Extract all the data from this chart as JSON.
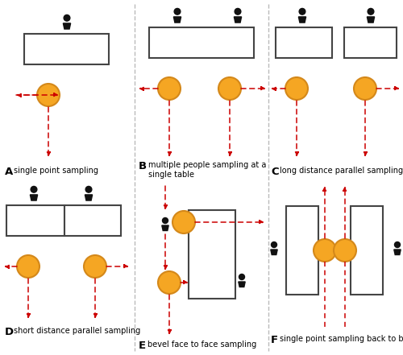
{
  "background": "#ffffff",
  "divider_color": "#bbbbbb",
  "arrow_color": "#cc0000",
  "circle_color": "#F5A623",
  "circle_edge": "#D4881A",
  "rect_edge": "#444444",
  "person_color": "#111111",
  "labels": {
    "A": "single point sampling",
    "B": "multiple people sampling at a\nsingle table",
    "C": "long distance parallel sampling",
    "D": "short distance parallel sampling",
    "E": "bevel face to face sampling",
    "F": "single point sampling back to back"
  },
  "label_fontsize": 7.0,
  "bold_letter_fontsize": 9.5
}
